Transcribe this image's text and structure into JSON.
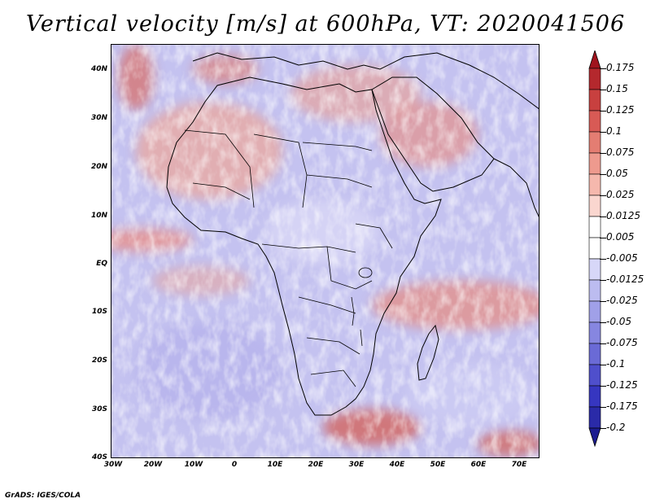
{
  "title": "Vertical velocity [m/s] at 600hPa, VT: 2020041506",
  "map": {
    "variable": "Vertical velocity",
    "units": "m/s",
    "level": "600hPa",
    "valid_time": "2020041506",
    "lon_range": [
      -30,
      75
    ],
    "lat_range": [
      -40,
      45
    ],
    "lat_labels": [
      "40N",
      "30N",
      "20N",
      "10N",
      "EQ",
      "10S",
      "20S",
      "30S",
      "40S"
    ],
    "lon_labels": [
      "30W",
      "20W",
      "10W",
      "0",
      "10E",
      "20E",
      "30E",
      "40E",
      "50E",
      "60E",
      "70E"
    ]
  },
  "colorbar": {
    "labels": [
      "0.175",
      "0.15",
      "0.125",
      "0.1",
      "0.075",
      "0.05",
      "0.025",
      "0.0125",
      "0.005",
      "-0.005",
      "-0.0125",
      "-0.025",
      "-0.05",
      "-0.075",
      "-0.1",
      "-0.125",
      "-0.175",
      "-0.2"
    ],
    "colors": [
      "#a0141e",
      "#b4282d",
      "#c8403f",
      "#d85a55",
      "#e47d72",
      "#ee9a8e",
      "#f5b8ad",
      "#fad6cf",
      "#ffffff",
      "#ffffff",
      "#d7d7f8",
      "#bcbcf0",
      "#a0a0e8",
      "#8686e0",
      "#6a6ad6",
      "#4f4fcc",
      "#3636c0",
      "#2a2aa8",
      "#1c1c90"
    ]
  },
  "credit": "GrADS: IGES/COLA"
}
